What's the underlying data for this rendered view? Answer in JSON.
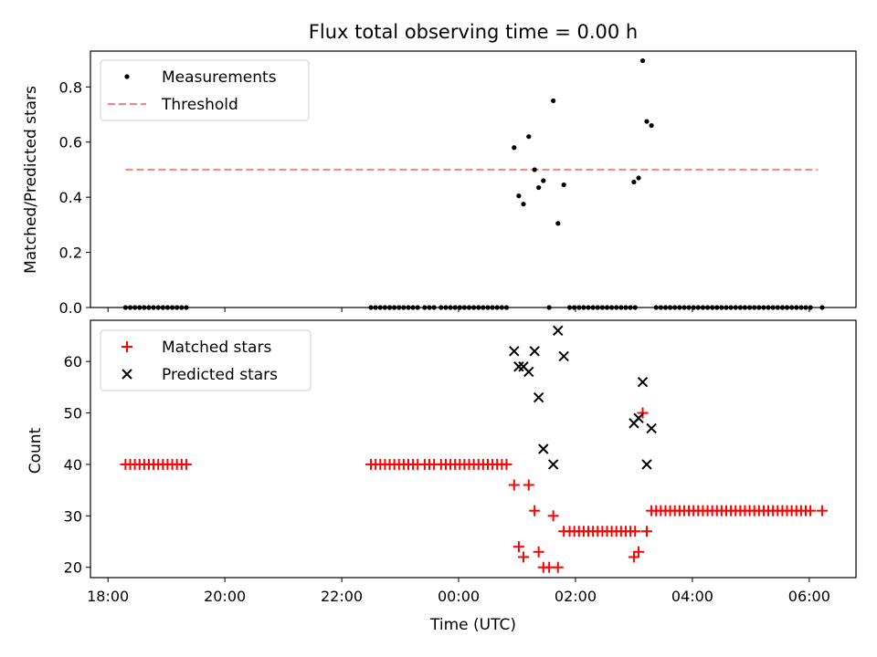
{
  "chart_data": {
    "type": "scatter",
    "title": "Flux total observing time = 0.00 h",
    "xlabel": "Time (UTC)",
    "x_unit": "hours since 18:00 UTC",
    "x_ticks": [
      {
        "value": 0,
        "label": "18:00"
      },
      {
        "value": 2,
        "label": "20:00"
      },
      {
        "value": 4,
        "label": "22:00"
      },
      {
        "value": 6,
        "label": "00:00"
      },
      {
        "value": 8,
        "label": "02:00"
      },
      {
        "value": 10,
        "label": "04:00"
      },
      {
        "value": 12,
        "label": "06:00"
      }
    ],
    "xlim": [
      -0.3,
      12.8
    ],
    "top": {
      "ylabel": "Matched/Predicted stars",
      "ylim": [
        0.0,
        0.93
      ],
      "y_ticks": [
        {
          "value": 0.0,
          "label": "0.0"
        },
        {
          "value": 0.2,
          "label": "0.2"
        },
        {
          "value": 0.4,
          "label": "0.4"
        },
        {
          "value": 0.6,
          "label": "0.6"
        },
        {
          "value": 0.8,
          "label": "0.8"
        }
      ],
      "legend": [
        {
          "label": "Measurements",
          "marker": "dot",
          "color": "#000000"
        },
        {
          "label": "Threshold",
          "marker": "dashed-line",
          "color": "#ff7f7f"
        }
      ],
      "legend_position": "upper-left",
      "threshold": {
        "value": 0.5,
        "x_start": 0.3,
        "x_end": 12.15,
        "color": "#ff7f7f"
      },
      "measurements": [
        [
          0.3,
          0
        ],
        [
          0.38,
          0
        ],
        [
          0.46,
          0
        ],
        [
          0.54,
          0
        ],
        [
          0.62,
          0
        ],
        [
          0.7,
          0
        ],
        [
          0.78,
          0
        ],
        [
          0.86,
          0
        ],
        [
          0.94,
          0
        ],
        [
          1.02,
          0
        ],
        [
          1.1,
          0
        ],
        [
          1.18,
          0
        ],
        [
          1.26,
          0
        ],
        [
          1.34,
          0
        ],
        [
          4.5,
          0
        ],
        [
          4.58,
          0
        ],
        [
          4.66,
          0
        ],
        [
          4.74,
          0
        ],
        [
          4.82,
          0
        ],
        [
          4.9,
          0
        ],
        [
          4.98,
          0
        ],
        [
          5.06,
          0
        ],
        [
          5.14,
          0
        ],
        [
          5.22,
          0
        ],
        [
          5.3,
          0
        ],
        [
          5.42,
          0
        ],
        [
          5.5,
          0
        ],
        [
          5.58,
          0
        ],
        [
          5.7,
          0
        ],
        [
          5.78,
          0
        ],
        [
          5.86,
          0
        ],
        [
          5.94,
          0
        ],
        [
          6.02,
          0
        ],
        [
          6.1,
          0
        ],
        [
          6.18,
          0
        ],
        [
          6.26,
          0
        ],
        [
          6.34,
          0
        ],
        [
          6.42,
          0
        ],
        [
          6.5,
          0
        ],
        [
          6.58,
          0
        ],
        [
          6.66,
          0
        ],
        [
          6.74,
          0
        ],
        [
          6.82,
          0
        ],
        [
          6.95,
          0.58
        ],
        [
          7.03,
          0.405
        ],
        [
          7.11,
          0.375
        ],
        [
          7.2,
          0.62
        ],
        [
          7.3,
          0.5
        ],
        [
          7.37,
          0.435
        ],
        [
          7.45,
          0.46
        ],
        [
          7.55,
          0
        ],
        [
          7.62,
          0.75
        ],
        [
          7.7,
          0.305
        ],
        [
          7.8,
          0.445
        ],
        [
          7.9,
          0
        ],
        [
          7.98,
          0
        ],
        [
          8.06,
          0
        ],
        [
          8.14,
          0
        ],
        [
          8.22,
          0
        ],
        [
          8.3,
          0
        ],
        [
          8.38,
          0
        ],
        [
          8.46,
          0
        ],
        [
          8.54,
          0
        ],
        [
          8.62,
          0
        ],
        [
          8.7,
          0
        ],
        [
          8.78,
          0
        ],
        [
          8.86,
          0
        ],
        [
          8.94,
          0
        ],
        [
          9.02,
          0
        ],
        [
          9.0,
          0.455
        ],
        [
          9.08,
          0.47
        ],
        [
          9.15,
          0.895
        ],
        [
          9.22,
          0.675
        ],
        [
          9.3,
          0.66
        ],
        [
          9.38,
          0
        ],
        [
          9.46,
          0
        ],
        [
          9.54,
          0
        ],
        [
          9.62,
          0
        ],
        [
          9.7,
          0
        ],
        [
          9.78,
          0
        ],
        [
          9.86,
          0
        ],
        [
          9.94,
          0
        ],
        [
          10.02,
          0
        ],
        [
          10.1,
          0
        ],
        [
          10.18,
          0
        ],
        [
          10.26,
          0
        ],
        [
          10.34,
          0
        ],
        [
          10.42,
          0
        ],
        [
          10.5,
          0
        ],
        [
          10.58,
          0
        ],
        [
          10.66,
          0
        ],
        [
          10.74,
          0
        ],
        [
          10.82,
          0
        ],
        [
          10.9,
          0
        ],
        [
          10.98,
          0
        ],
        [
          11.06,
          0
        ],
        [
          11.14,
          0
        ],
        [
          11.22,
          0
        ],
        [
          11.3,
          0
        ],
        [
          11.38,
          0
        ],
        [
          11.46,
          0
        ],
        [
          11.54,
          0
        ],
        [
          11.62,
          0
        ],
        [
          11.7,
          0
        ],
        [
          11.78,
          0
        ],
        [
          11.86,
          0
        ],
        [
          11.94,
          0
        ],
        [
          12.02,
          0
        ],
        [
          12.22,
          0
        ]
      ]
    },
    "bottom": {
      "ylabel": "Count",
      "ylim": [
        18,
        68
      ],
      "y_ticks": [
        {
          "value": 20,
          "label": "20"
        },
        {
          "value": 30,
          "label": "30"
        },
        {
          "value": 40,
          "label": "40"
        },
        {
          "value": 50,
          "label": "50"
        },
        {
          "value": 60,
          "label": "60"
        }
      ],
      "legend": [
        {
          "label": "Matched stars",
          "marker": "plus",
          "color": "#ff0000"
        },
        {
          "label": "Predicted stars",
          "marker": "x",
          "color": "#000000"
        }
      ],
      "legend_position": "upper-left",
      "matched": [
        [
          0.3,
          40
        ],
        [
          0.38,
          40
        ],
        [
          0.46,
          40
        ],
        [
          0.54,
          40
        ],
        [
          0.62,
          40
        ],
        [
          0.7,
          40
        ],
        [
          0.78,
          40
        ],
        [
          0.86,
          40
        ],
        [
          0.94,
          40
        ],
        [
          1.02,
          40
        ],
        [
          1.1,
          40
        ],
        [
          1.18,
          40
        ],
        [
          1.26,
          40
        ],
        [
          1.34,
          40
        ],
        [
          4.5,
          40
        ],
        [
          4.58,
          40
        ],
        [
          4.66,
          40
        ],
        [
          4.74,
          40
        ],
        [
          4.82,
          40
        ],
        [
          4.9,
          40
        ],
        [
          4.98,
          40
        ],
        [
          5.06,
          40
        ],
        [
          5.14,
          40
        ],
        [
          5.22,
          40
        ],
        [
          5.3,
          40
        ],
        [
          5.42,
          40
        ],
        [
          5.5,
          40
        ],
        [
          5.58,
          40
        ],
        [
          5.7,
          40
        ],
        [
          5.78,
          40
        ],
        [
          5.86,
          40
        ],
        [
          5.94,
          40
        ],
        [
          6.02,
          40
        ],
        [
          6.1,
          40
        ],
        [
          6.18,
          40
        ],
        [
          6.26,
          40
        ],
        [
          6.34,
          40
        ],
        [
          6.42,
          40
        ],
        [
          6.5,
          40
        ],
        [
          6.58,
          40
        ],
        [
          6.66,
          40
        ],
        [
          6.74,
          40
        ],
        [
          6.82,
          40
        ],
        [
          6.95,
          36
        ],
        [
          7.03,
          24
        ],
        [
          7.11,
          22
        ],
        [
          7.2,
          36
        ],
        [
          7.3,
          31
        ],
        [
          7.37,
          23
        ],
        [
          7.45,
          20
        ],
        [
          7.55,
          20
        ],
        [
          7.62,
          30
        ],
        [
          7.7,
          20
        ],
        [
          7.8,
          27
        ],
        [
          7.9,
          27
        ],
        [
          7.98,
          27
        ],
        [
          8.06,
          27
        ],
        [
          8.14,
          27
        ],
        [
          8.22,
          27
        ],
        [
          8.3,
          27
        ],
        [
          8.38,
          27
        ],
        [
          8.46,
          27
        ],
        [
          8.54,
          27
        ],
        [
          8.62,
          27
        ],
        [
          8.7,
          27
        ],
        [
          8.78,
          27
        ],
        [
          8.86,
          27
        ],
        [
          8.94,
          27
        ],
        [
          9.02,
          27
        ],
        [
          9.0,
          22
        ],
        [
          9.08,
          23
        ],
        [
          9.15,
          50
        ],
        [
          9.22,
          27
        ],
        [
          9.3,
          31
        ],
        [
          9.38,
          31
        ],
        [
          9.46,
          31
        ],
        [
          9.54,
          31
        ],
        [
          9.62,
          31
        ],
        [
          9.7,
          31
        ],
        [
          9.78,
          31
        ],
        [
          9.86,
          31
        ],
        [
          9.94,
          31
        ],
        [
          10.02,
          31
        ],
        [
          10.1,
          31
        ],
        [
          10.18,
          31
        ],
        [
          10.26,
          31
        ],
        [
          10.34,
          31
        ],
        [
          10.42,
          31
        ],
        [
          10.5,
          31
        ],
        [
          10.58,
          31
        ],
        [
          10.66,
          31
        ],
        [
          10.74,
          31
        ],
        [
          10.82,
          31
        ],
        [
          10.9,
          31
        ],
        [
          10.98,
          31
        ],
        [
          11.06,
          31
        ],
        [
          11.14,
          31
        ],
        [
          11.22,
          31
        ],
        [
          11.3,
          31
        ],
        [
          11.38,
          31
        ],
        [
          11.46,
          31
        ],
        [
          11.54,
          31
        ],
        [
          11.62,
          31
        ],
        [
          11.7,
          31
        ],
        [
          11.78,
          31
        ],
        [
          11.86,
          31
        ],
        [
          11.94,
          31
        ],
        [
          12.02,
          31
        ],
        [
          12.22,
          31
        ]
      ],
      "predicted": [
        [
          6.95,
          62
        ],
        [
          7.03,
          59
        ],
        [
          7.11,
          59
        ],
        [
          7.2,
          58
        ],
        [
          7.3,
          62
        ],
        [
          7.37,
          53
        ],
        [
          7.45,
          43
        ],
        [
          7.62,
          40
        ],
        [
          7.7,
          66
        ],
        [
          7.8,
          61
        ],
        [
          9.0,
          48
        ],
        [
          9.08,
          49
        ],
        [
          9.15,
          56
        ],
        [
          9.22,
          40
        ],
        [
          9.3,
          47
        ]
      ]
    }
  }
}
